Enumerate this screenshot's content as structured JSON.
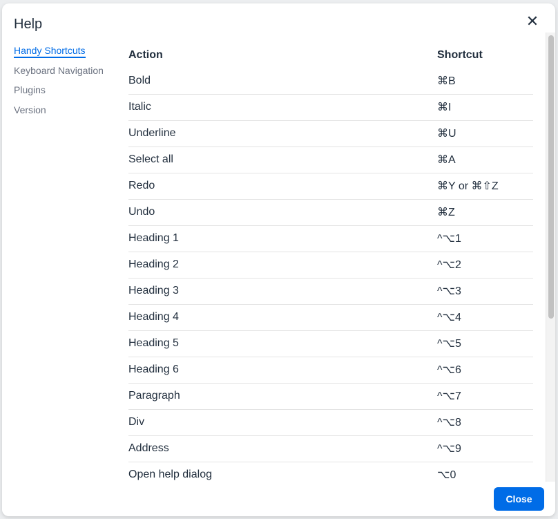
{
  "dialog": {
    "title": "Help",
    "close_icon": "close-icon",
    "close_button": "Close"
  },
  "nav": {
    "items": [
      {
        "label": "Handy Shortcuts",
        "active": true
      },
      {
        "label": "Keyboard Navigation"
      },
      {
        "label": "Plugins"
      },
      {
        "label": "Version"
      }
    ]
  },
  "table": {
    "headers": [
      "Action",
      "Shortcut"
    ],
    "rows": [
      [
        "Bold",
        "⌘B"
      ],
      [
        "Italic",
        "⌘I"
      ],
      [
        "Underline",
        "⌘U"
      ],
      [
        "Select all",
        "⌘A"
      ],
      [
        "Redo",
        "⌘Y or ⌘⇧Z"
      ],
      [
        "Undo",
        "⌘Z"
      ],
      [
        "Heading 1",
        "^⌥1"
      ],
      [
        "Heading 2",
        "^⌥2"
      ],
      [
        "Heading 3",
        "^⌥3"
      ],
      [
        "Heading 4",
        "^⌥4"
      ],
      [
        "Heading 5",
        "^⌥5"
      ],
      [
        "Heading 6",
        "^⌥6"
      ],
      [
        "Paragraph",
        "^⌥7"
      ],
      [
        "Div",
        "^⌥8"
      ],
      [
        "Address",
        "^⌥9"
      ],
      [
        "Open help dialog",
        "⌥0"
      ]
    ]
  },
  "colors": {
    "accent": "#006ce7"
  }
}
